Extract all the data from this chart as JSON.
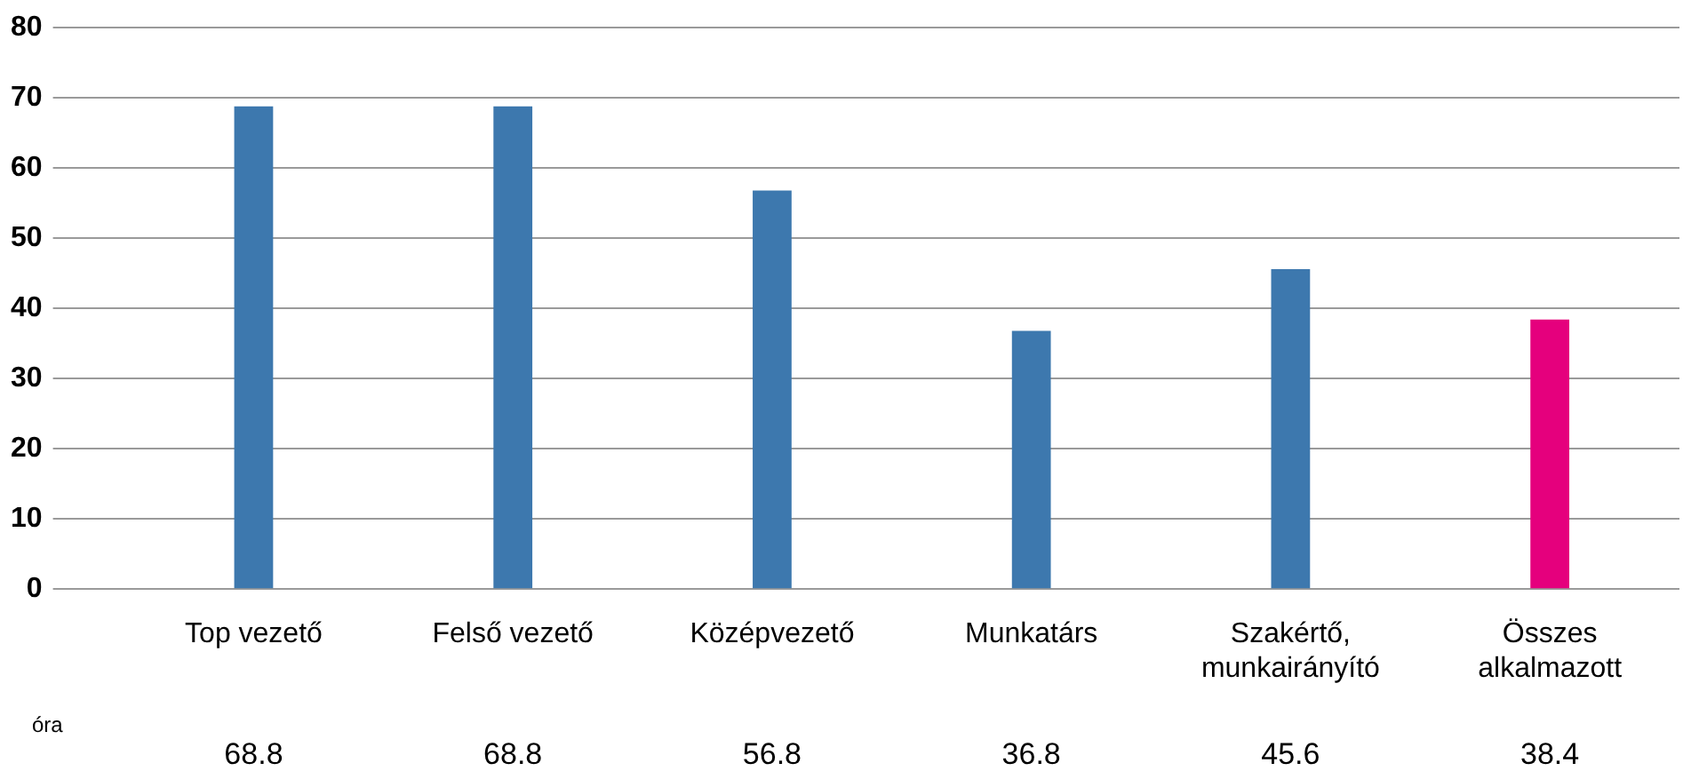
{
  "chart_data": {
    "type": "bar",
    "categories": [
      "Top vezető",
      "Felső vezető",
      "Középvezető",
      "Munkatárs",
      "Szakértő, munkairányító",
      "Összes alkalmazott"
    ],
    "values": [
      68.8,
      68.8,
      56.8,
      36.8,
      45.6,
      38.4
    ],
    "colors": [
      "#3d78ae",
      "#3d78ae",
      "#3d78ae",
      "#3d78ae",
      "#3d78ae",
      "#e5007d"
    ],
    "ylim": [
      0,
      80
    ],
    "yticks": [
      0,
      10,
      20,
      30,
      40,
      50,
      60,
      70,
      80
    ],
    "grid": "y",
    "legend": false,
    "data_labels": true,
    "annotations": [
      "óra"
    ]
  }
}
